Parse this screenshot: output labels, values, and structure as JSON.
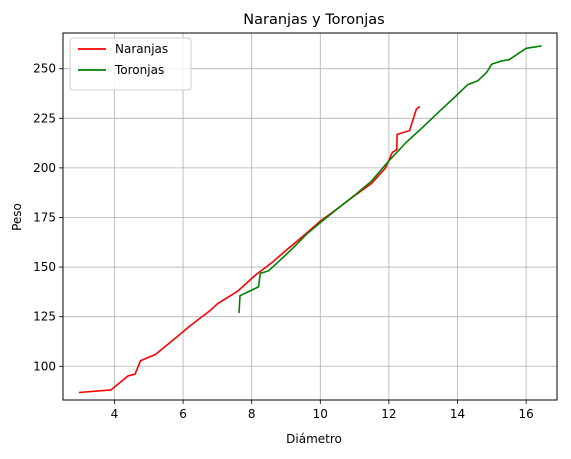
{
  "chart_data": {
    "type": "line",
    "title": "Naranjas y Toronjas",
    "xlabel": "Diámetro",
    "ylabel": "Peso",
    "xlim": [
      2.5,
      16.9
    ],
    "ylim": [
      83,
      268
    ],
    "xticks": [
      4,
      6,
      8,
      10,
      12,
      14,
      16
    ],
    "yticks": [
      100,
      125,
      150,
      175,
      200,
      225,
      250
    ],
    "grid": true,
    "legend_position": "upper left",
    "series": [
      {
        "name": "Naranjas",
        "color": "#ff0000",
        "points": [
          [
            2.96,
            86.8
          ],
          [
            3.9,
            88.1
          ],
          [
            4.4,
            95.2
          ],
          [
            4.6,
            96.0
          ],
          [
            4.76,
            102.8
          ],
          [
            5.2,
            106.0
          ],
          [
            5.8,
            114.5
          ],
          [
            6.2,
            120.3
          ],
          [
            6.8,
            128.2
          ],
          [
            7.0,
            131.5
          ],
          [
            7.6,
            138.0
          ],
          [
            8.1,
            145.8
          ],
          [
            8.6,
            152.4
          ],
          [
            9.0,
            158.4
          ],
          [
            9.5,
            165.6
          ],
          [
            10.0,
            173.2
          ],
          [
            10.5,
            179.5
          ],
          [
            11.0,
            186.0
          ],
          [
            11.5,
            192.3
          ],
          [
            11.9,
            200.0
          ],
          [
            12.1,
            207.8
          ],
          [
            12.23,
            209.2
          ],
          [
            12.24,
            216.9
          ],
          [
            12.6,
            218.8
          ],
          [
            12.8,
            229.5
          ],
          [
            12.9,
            231.0
          ]
        ]
      },
      {
        "name": "Toronjas",
        "color": "#008000",
        "points": [
          [
            7.63,
            126.9
          ],
          [
            7.66,
            135.6
          ],
          [
            8.2,
            140.0
          ],
          [
            8.25,
            146.8
          ],
          [
            8.5,
            148.2
          ],
          [
            8.8,
            153.0
          ],
          [
            9.2,
            159.5
          ],
          [
            9.6,
            166.6
          ],
          [
            10.0,
            172.4
          ],
          [
            10.5,
            179.4
          ],
          [
            11.0,
            186.2
          ],
          [
            11.5,
            193.5
          ],
          [
            12.0,
            203.6
          ],
          [
            12.5,
            212.8
          ],
          [
            13.0,
            220.7
          ],
          [
            13.5,
            229.0
          ],
          [
            14.0,
            237.0
          ],
          [
            14.3,
            242.0
          ],
          [
            14.6,
            244.0
          ],
          [
            14.85,
            248.2
          ],
          [
            15.0,
            252.3
          ],
          [
            15.3,
            254.0
          ],
          [
            15.5,
            254.5
          ],
          [
            16.0,
            260.3
          ],
          [
            16.45,
            261.5
          ]
        ]
      }
    ]
  }
}
